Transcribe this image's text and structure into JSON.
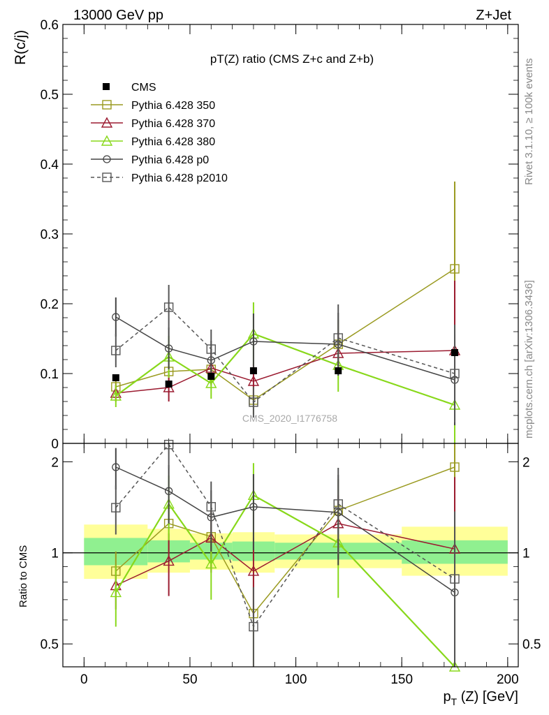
{
  "header": {
    "left_title": "13000 GeV pp",
    "right_title": "Z+Jet"
  },
  "side_labels": {
    "rivet": "Rivet 3.1.10, ≥ 100k events",
    "mcplots": "mcplots.cern.ch [arXiv:1306.3436]"
  },
  "watermark": "CMS_2020_I1776758",
  "chart_data": [
    {
      "type": "line",
      "title": "pT(Z) ratio (CMS  Z+c and Z+b)",
      "ylabel": "R(c/j)",
      "xlim": [
        -10,
        205
      ],
      "ylim": [
        0,
        0.6
      ],
      "y_ticks": [
        "0",
        "0.1",
        "0.2",
        "0.3",
        "0.4",
        "0.5",
        "0.6"
      ],
      "x": [
        15,
        40,
        60,
        80,
        120,
        175
      ],
      "data": {
        "name": "CMS",
        "color": "#000000",
        "values": [
          0.094,
          0.085,
          0.096,
          0.104,
          0.104,
          0.13
        ]
      },
      "series": [
        {
          "name": "Pythia 6.428 350",
          "color": "#9a9a20",
          "marker": "open-square",
          "dash": "solid",
          "values": [
            0.081,
            0.103,
            0.106,
            0.062,
            0.142,
            0.25
          ],
          "err_low": [
            0.012,
            0.02,
            0.02,
            0.02,
            0.035,
            0.125
          ],
          "err_high": [
            0.012,
            0.02,
            0.02,
            0.02,
            0.035,
            0.125
          ]
        },
        {
          "name": "Pythia 6.428 370",
          "color": "#9b1b30",
          "marker": "open-triangle",
          "dash": "solid",
          "values": [
            0.072,
            0.08,
            0.108,
            0.089,
            0.129,
            0.133
          ],
          "err_low": [
            0.012,
            0.02,
            0.025,
            0.025,
            0.03,
            0.1
          ],
          "err_high": [
            0.012,
            0.02,
            0.025,
            0.025,
            0.03,
            0.1
          ]
        },
        {
          "name": "Pythia 6.428 380",
          "color": "#88d81a",
          "marker": "open-triangle",
          "dash": "solid",
          "values": [
            0.068,
            0.124,
            0.086,
            0.157,
            0.112,
            0.055
          ],
          "err_low": [
            0.016,
            0.03,
            0.022,
            0.045,
            0.038,
            0.055
          ],
          "err_high": [
            0.016,
            0.03,
            0.022,
            0.045,
            0.038,
            0.055
          ]
        },
        {
          "name": "Pythia 6.428 p0",
          "color": "#444444",
          "marker": "open-circle",
          "dash": "solid",
          "values": [
            0.181,
            0.136,
            0.119,
            0.146,
            0.142,
            0.091
          ],
          "err_low": [
            0.028,
            0.03,
            0.028,
            0.04,
            0.045,
            0.065
          ],
          "err_high": [
            0.028,
            0.03,
            0.028,
            0.04,
            0.045,
            0.065
          ]
        },
        {
          "name": "Pythia 6.428 p2010",
          "color": "#555555",
          "marker": "open-square",
          "dash": "dashed",
          "values": [
            0.133,
            0.195,
            0.135,
            0.059,
            0.151,
            0.1
          ],
          "err_low": [
            0.024,
            0.032,
            0.028,
            0.022,
            0.048,
            0.07
          ],
          "err_high": [
            0.024,
            0.032,
            0.028,
            0.022,
            0.048,
            0.07
          ]
        }
      ]
    },
    {
      "type": "line",
      "ylabel": "Ratio to CMS",
      "xlabel_main": "p",
      "xlabel_sub": "T",
      "xlabel_rest": "(Z) [GeV]",
      "xlim": [
        -10,
        205
      ],
      "ylim": [
        0.42,
        2.3
      ],
      "y_scale": "log",
      "y_ticks_left": [
        "0.5",
        "1",
        "2"
      ],
      "y_ticks_right": [
        "0.5",
        "1",
        "2"
      ],
      "x_ticks": [
        "0",
        "50",
        "100",
        "150",
        "200"
      ],
      "bands": [
        {
          "x0": 0,
          "x1": 30,
          "stat_lo": 0.91,
          "stat_hi": 1.12,
          "tot_lo": 0.82,
          "tot_hi": 1.24
        },
        {
          "x0": 30,
          "x1": 50,
          "stat_lo": 0.93,
          "stat_hi": 1.1,
          "tot_lo": 0.86,
          "tot_hi": 1.2
        },
        {
          "x0": 50,
          "x1": 70,
          "stat_lo": 0.95,
          "stat_hi": 1.08,
          "tot_lo": 0.88,
          "tot_hi": 1.16
        },
        {
          "x0": 70,
          "x1": 90,
          "stat_lo": 0.94,
          "stat_hi": 1.09,
          "tot_lo": 0.86,
          "tot_hi": 1.17
        },
        {
          "x0": 90,
          "x1": 150,
          "stat_lo": 0.95,
          "stat_hi": 1.08,
          "tot_lo": 0.89,
          "tot_hi": 1.15
        },
        {
          "x0": 150,
          "x1": 200,
          "stat_lo": 0.92,
          "stat_hi": 1.1,
          "tot_lo": 0.84,
          "tot_hi": 1.22
        }
      ],
      "x": [
        15,
        40,
        60,
        80,
        120,
        175
      ],
      "series": [
        {
          "name": "Pythia 6.428 350",
          "values": [
            0.87,
            1.25,
            1.13,
            0.63,
            1.38,
            1.92
          ],
          "err_low": [
            0.14,
            0.25,
            0.24,
            0.22,
            0.37,
            0.9
          ],
          "err_high": [
            0.14,
            0.25,
            0.24,
            0.22,
            0.37,
            0.9
          ]
        },
        {
          "name": "Pythia 6.428 370",
          "values": [
            0.78,
            0.94,
            1.12,
            0.87,
            1.25,
            1.03
          ],
          "err_low": [
            0.13,
            0.22,
            0.26,
            0.25,
            0.3,
            0.75
          ],
          "err_high": [
            0.13,
            0.22,
            0.26,
            0.25,
            0.3,
            0.75
          ]
        },
        {
          "name": "Pythia 6.428 380",
          "values": [
            0.74,
            1.45,
            0.92,
            1.55,
            1.08,
            0.4
          ],
          "err_low": [
            0.17,
            0.35,
            0.22,
            0.43,
            0.37,
            0.4
          ],
          "err_high": [
            0.17,
            0.35,
            0.22,
            0.43,
            0.37,
            0.4
          ]
        },
        {
          "name": "Pythia 6.428 p0",
          "values": [
            1.92,
            1.6,
            1.31,
            1.42,
            1.36,
            0.74
          ],
          "err_low": [
            0.3,
            0.35,
            0.3,
            0.4,
            0.45,
            0.5
          ],
          "err_high": [
            0.3,
            0.35,
            0.3,
            0.4,
            0.45,
            0.5
          ]
        },
        {
          "name": "Pythia 6.428 p2010",
          "values": [
            1.41,
            2.28,
            1.42,
            0.57,
            1.45,
            0.82
          ],
          "err_low": [
            0.26,
            0.38,
            0.3,
            0.2,
            0.46,
            0.55
          ],
          "err_high": [
            0.26,
            0.38,
            0.3,
            0.2,
            0.46,
            0.55
          ]
        }
      ]
    }
  ]
}
